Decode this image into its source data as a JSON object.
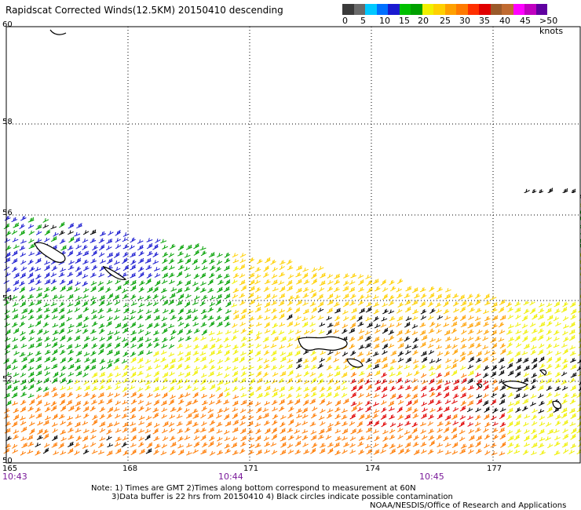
{
  "title": "Rapidscat Corrected Winds(12.5KM) 20150410 descending",
  "legend": {
    "colors": [
      "#3a3a3a",
      "#6a6a6a",
      "#00c8ff",
      "#0070ff",
      "#1a1ad0",
      "#00c000",
      "#00a000",
      "#f0f000",
      "#ffd000",
      "#ffa000",
      "#ff7a00",
      "#ff3000",
      "#e00000",
      "#9a5a2a",
      "#c06a30",
      "#ff00ff",
      "#c000c0",
      "#6000a0"
    ],
    "labels": [
      "0",
      "5",
      "10",
      "15",
      "20",
      "25",
      "30",
      "35",
      "40",
      "45",
      ">50 knots"
    ]
  },
  "map": {
    "lat_labels": [
      "60",
      "58",
      "56",
      "54",
      "52",
      "50"
    ],
    "lon_labels": [
      "165",
      "168",
      "171",
      "174",
      "177"
    ],
    "time_labels": [
      "10:43",
      "10:44",
      "10:45"
    ]
  },
  "wind_colors": {
    "black": "#000000",
    "blue": "#1a1ad0",
    "green": "#00a000",
    "yellow": "#f0f000",
    "gold": "#ffd000",
    "orange": "#ffa000",
    "dark_orange": "#ff7a00",
    "red": "#e00000",
    "magenta": "#c000c0"
  },
  "notes": {
    "line1": "Note: 1) Times are GMT 2)Times along bottom correspond to measurement at 60N",
    "line2": "3)Data buffer is 22 hrs from 20150410 4) Black circles indicate possible contamination",
    "line3": "NOAA/NESDIS/Office of Research and Applications"
  }
}
